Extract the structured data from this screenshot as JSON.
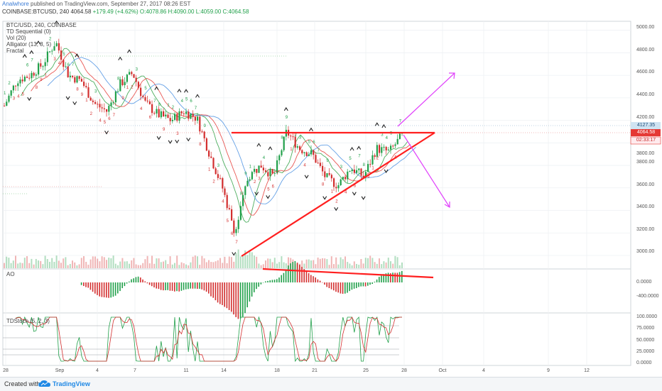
{
  "header": {
    "author": "Analwhore",
    "published_text": "published on TradingView.com, September 27, 2017 08:26 EST",
    "symbol": "COINBASE:BTCUSD, 240",
    "last": "4064.58",
    "change": "+179.49 (+4.62%)",
    "open": "O:4078.86",
    "high": "H:4090.00",
    "low": "L:4059.00",
    "close": "C:4064.58"
  },
  "legend": {
    "title": "BTC/USD, 240, COINBASE",
    "items": [
      "TD Sequential (0)",
      "Vol (20)",
      "Alligator (13, 8, 5)",
      "Fractal"
    ]
  },
  "panes": {
    "ao_label": "AO",
    "stoch_label": "TDStoch (5, 2, 3)"
  },
  "price_axis": [
    "5000.00",
    "4800.00",
    "4600.00",
    "4400.00",
    "4200.00",
    "4000.00",
    "3800.00",
    "3600.00",
    "3400.00",
    "3200.00",
    "3000.00"
  ],
  "price_tags": {
    "top": "4127.35",
    "current": "4064.58",
    "countdown": "02:33:17"
  },
  "ao_axis": [
    "0.0000",
    "-400.0000"
  ],
  "stoch_axis": [
    "100.0000",
    "75.0000",
    "50.0000",
    "25.0000",
    "0.0000"
  ],
  "x_axis": [
    "28",
    "Sep",
    "4",
    "7",
    "11",
    "14",
    "18",
    "21",
    "25",
    "28",
    "Oct",
    "4",
    "9",
    "12"
  ],
  "footer": {
    "created": "Created with",
    "brand": "TradingView"
  },
  "colors": {
    "up": "#21a04a",
    "down": "#d32f2f",
    "trendline": "#ff1f1f",
    "projection": "#e040fb",
    "brand": "#1e88e5"
  },
  "chart_data": {
    "type": "candlestick",
    "symbol": "BTCUSD",
    "exchange": "COINBASE",
    "interval": "240",
    "ylim": [
      2880,
      5080
    ],
    "y_ticks": [
      5000,
      4800,
      4600,
      4400,
      4200,
      4000,
      3800,
      3600,
      3400,
      3200,
      3000
    ],
    "x_ticks": [
      "28",
      "Sep",
      "4",
      "7",
      "11",
      "14",
      "18",
      "21",
      "25",
      "28",
      "Oct",
      "4",
      "9",
      "12"
    ],
    "close_path": [
      {
        "date": "2017-08-28",
        "close": 4330
      },
      {
        "date": "2017-08-29",
        "close": 4560
      },
      {
        "date": "2017-08-30",
        "close": 4600
      },
      {
        "date": "2017-08-31",
        "close": 4700
      },
      {
        "date": "2017-09-01",
        "close": 4900
      },
      {
        "date": "2017-09-02",
        "close": 4600
      },
      {
        "date": "2017-09-03",
        "close": 4550
      },
      {
        "date": "2017-09-04",
        "close": 4350
      },
      {
        "date": "2017-09-05",
        "close": 4280
      },
      {
        "date": "2017-09-06",
        "close": 4520
      },
      {
        "date": "2017-09-07",
        "close": 4620
      },
      {
        "date": "2017-09-08",
        "close": 4350
      },
      {
        "date": "2017-09-09",
        "close": 4250
      },
      {
        "date": "2017-09-10",
        "close": 4200
      },
      {
        "date": "2017-09-11",
        "close": 4280
      },
      {
        "date": "2017-09-12",
        "close": 4220
      },
      {
        "date": "2017-09-13",
        "close": 3900
      },
      {
        "date": "2017-09-14",
        "close": 3600
      },
      {
        "date": "2017-09-15",
        "close": 3200
      },
      {
        "date": "2017-09-16",
        "close": 3700
      },
      {
        "date": "2017-09-17",
        "close": 3800
      },
      {
        "date": "2017-09-18",
        "close": 3700
      },
      {
        "date": "2017-09-19",
        "close": 4100
      },
      {
        "date": "2017-09-20",
        "close": 3950
      },
      {
        "date": "2017-09-21",
        "close": 3900
      },
      {
        "date": "2017-09-22",
        "close": 3700
      },
      {
        "date": "2017-09-23",
        "close": 3620
      },
      {
        "date": "2017-09-24",
        "close": 3780
      },
      {
        "date": "2017-09-25",
        "close": 3700
      },
      {
        "date": "2017-09-26",
        "close": 3950
      },
      {
        "date": "2017-09-27",
        "close": 3920
      },
      {
        "date": "2017-09-28",
        "close": 4064.58
      }
    ],
    "levels": {
      "resistance": 4060,
      "last_price": 4064.58,
      "top_label": 4127.35
    },
    "trendlines": [
      {
        "name": "ascending support",
        "from": {
          "date": "2017-09-15",
          "price": 2970
        },
        "to": {
          "date": "2017-09-30",
          "price": 4060
        }
      },
      {
        "name": "horizontal resistance",
        "from": {
          "date": "2017-09-15",
          "price": 4060
        },
        "to": {
          "date": "2017-09-30",
          "price": 4060
        }
      }
    ],
    "projections": [
      {
        "direction": "up",
        "target_price": 4610
      },
      {
        "direction": "down",
        "target_price": 3430
      }
    ],
    "indicators": [
      "TD Sequential (0)",
      "Vol (20)",
      "Alligator (13, 8, 5)",
      "Fractal",
      "AO",
      "TDStoch (5, 2, 3)"
    ]
  }
}
